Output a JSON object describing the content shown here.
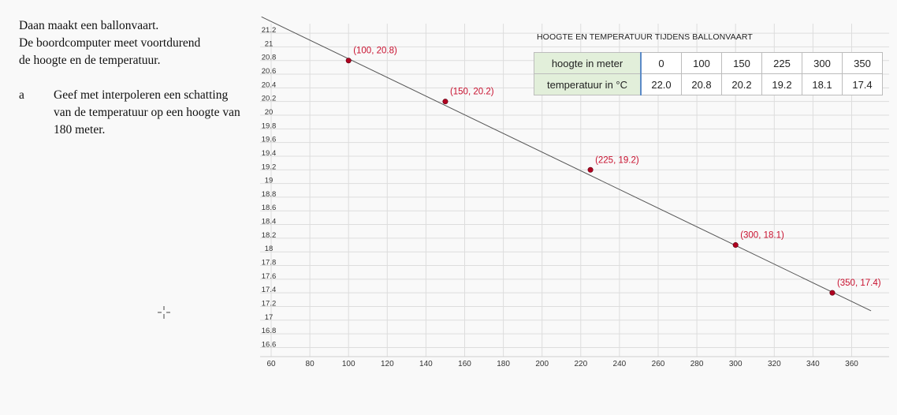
{
  "question": {
    "intro": [
      "Daan maakt een ballonvaart.",
      "De boordcomputer meet voortdurend",
      "de hoogte en de temperatuur."
    ],
    "part_letter": "a",
    "part_text": "Geef met interpoleren een schatting van de temperatuur op een hoogte van 180 meter."
  },
  "table": {
    "title": "HOOGTE EN TEMPERATUUR TIJDENS BALLONVAART",
    "row_labels": [
      "hoogte in meter",
      "temperatuur in °C"
    ],
    "heights": [
      "0",
      "100",
      "150",
      "225",
      "300",
      "350"
    ],
    "temperatures": [
      "22.0",
      "20.8",
      "20.2",
      "19.2",
      "18.1",
      "17.4"
    ]
  },
  "chart_data": {
    "type": "line",
    "title": "",
    "xlabel": "",
    "ylabel": "",
    "xlim": [
      60,
      370
    ],
    "ylim": [
      16.5,
      21.3
    ],
    "xticks": [
      60,
      80,
      100,
      120,
      140,
      160,
      180,
      200,
      220,
      240,
      260,
      280,
      300,
      320,
      340,
      360
    ],
    "yticks": [
      16.6,
      16.8,
      17,
      17.2,
      17.4,
      17.6,
      17.8,
      18,
      18.2,
      18.4,
      18.6,
      18.8,
      19,
      19.2,
      19.4,
      19.6,
      19.8,
      20,
      20.2,
      20.4,
      20.6,
      20.8,
      21,
      21.2
    ],
    "ytick_labels": [
      "16.6",
      "16.8",
      "17",
      "17.2",
      "17.4",
      "17.6",
      "17.8",
      "18",
      "18.2",
      "18.4",
      "18.6",
      "18.8",
      "19",
      "19.2",
      "19.4",
      "19.6",
      "19.8",
      "20",
      "20.2",
      "20.4",
      "20.6",
      "20.8",
      "21",
      "21.2"
    ],
    "grid": true,
    "line": {
      "x": [
        55,
        370
      ],
      "y": [
        21.44,
        17.137
      ]
    },
    "points": [
      {
        "x": 100,
        "y": 20.8,
        "label": "(100, 20.8)"
      },
      {
        "x": 150,
        "y": 20.2,
        "label": "(150, 20.2)"
      },
      {
        "x": 225,
        "y": 19.2,
        "label": "(225, 19.2)"
      },
      {
        "x": 300,
        "y": 18.1,
        "label": "(300, 18.1)"
      },
      {
        "x": 350,
        "y": 17.4,
        "label": "(350, 17.4)"
      }
    ],
    "colors": {
      "line": "#555555",
      "point": "#b00020",
      "label": "#c8102e",
      "grid": "#dddddd"
    }
  }
}
